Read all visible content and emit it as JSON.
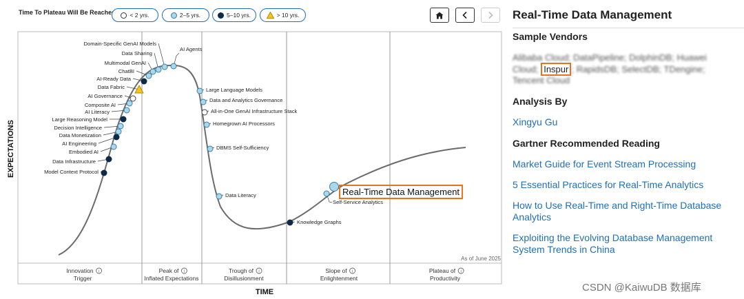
{
  "legend": {
    "label": "Time To Plateau Will Be Reached:",
    "items": [
      {
        "label": "< 2 yrs.",
        "symbol": "open-circle-icon",
        "fill": "#ffffff",
        "stroke": "#333333"
      },
      {
        "label": "2–5 yrs.",
        "symbol": "light-blue-circle-icon",
        "fill": "#a8d8ea",
        "stroke": "#3a7ca5"
      },
      {
        "label": "5–10 yrs.",
        "symbol": "dark-navy-circle-icon",
        "fill": "#0d2a4a",
        "stroke": "#0d2a4a"
      },
      {
        "label": "> 10 yrs.",
        "symbol": "yellow-triangle-icon",
        "fill": "#f5c518",
        "stroke": "#b8860b"
      }
    ]
  },
  "nav": {
    "home": "home-icon",
    "prev": "chevron-left-icon",
    "next": "chevron-right-icon"
  },
  "chart_data": {
    "type": "scatter",
    "subtype": "hype-cycle",
    "xlabel": "TIME",
    "ylabel": "EXPECTATIONS",
    "date_note": "As of June 2025",
    "phases": [
      "Innovation Trigger",
      "Peak of Inflated Expectations",
      "Trough of Disillusionment",
      "Slope of Enlightenment",
      "Plateau of Productivity"
    ],
    "points": [
      {
        "label": "Domain-Specific GenAI Models",
        "plateau": "2-5"
      },
      {
        "label": "Data Sharing",
        "plateau": "2-5"
      },
      {
        "label": "AI Agents",
        "plateau": "2-5"
      },
      {
        "label": "Multimodal GenAI",
        "plateau": "2-5"
      },
      {
        "label": "ChatBI",
        "plateau": "2-5"
      },
      {
        "label": "AI-Ready Data",
        "plateau": "5-10"
      },
      {
        "label": "Data Fabric",
        "plateau": ">10"
      },
      {
        "label": "AI Governance",
        "plateau": "<2"
      },
      {
        "label": "Composite AI",
        "plateau": "2-5"
      },
      {
        "label": "AI Literacy",
        "plateau": "2-5"
      },
      {
        "label": "Large Reasoning Model",
        "plateau": "5-10"
      },
      {
        "label": "Decision Intelligence",
        "plateau": "2-5"
      },
      {
        "label": "Data Monetization",
        "plateau": "2-5"
      },
      {
        "label": "AI Engineering",
        "plateau": "5-10"
      },
      {
        "label": "Embodied AI",
        "plateau": "2-5"
      },
      {
        "label": "Data Infrastructure",
        "plateau": "5-10"
      },
      {
        "label": "Model Context Protocol",
        "plateau": "5-10"
      },
      {
        "label": "Large Language Models",
        "plateau": "2-5"
      },
      {
        "label": "Data and Analytics Governance",
        "plateau": "2-5"
      },
      {
        "label": "All-in-One GenAI Infrastructure Stack",
        "plateau": "<2"
      },
      {
        "label": "Homegrown AI Processors",
        "plateau": "2-5"
      },
      {
        "label": "DBMS Self-Sufficiency",
        "plateau": "2-5"
      },
      {
        "label": "Data Literacy",
        "plateau": "2-5"
      },
      {
        "label": "Knowledge Graphs",
        "plateau": "5-10"
      },
      {
        "label": "Real-Time Data Management",
        "plateau": "2-5",
        "highlighted": true
      },
      {
        "label": "Self-Service Analytics",
        "plateau": "2-5"
      }
    ]
  },
  "sidebar": {
    "title": "Real-Time Data Management",
    "vendors_heading": "Sample Vendors",
    "vendors_before": "Alibaba Cloud; DataPipeline; DolphinDB; Huawei Cloud;",
    "vendors_highlight": "Inspur",
    "vendors_after": "; RapidsDB; SelectDB; TDengine; Tencent Cloud",
    "analysis_heading": "Analysis By",
    "analyst": "Xingyu Gu",
    "reading_heading": "Gartner Recommended Reading",
    "readings": [
      "Market Guide for Event Stream Processing",
      "5 Essential Practices for Real-Time Analytics",
      "How to Use Real-Time and Right-Time Database Analytics",
      "Exploiting the Evolving Database Management System Trends in China"
    ]
  },
  "watermark": "CSDN @KaiwuDB 数据库",
  "colors": {
    "accent": "#1f6fb6",
    "highlight": "#e8731c",
    "navy": "#0d2a4a",
    "light_blue": "#a8d8ea"
  }
}
